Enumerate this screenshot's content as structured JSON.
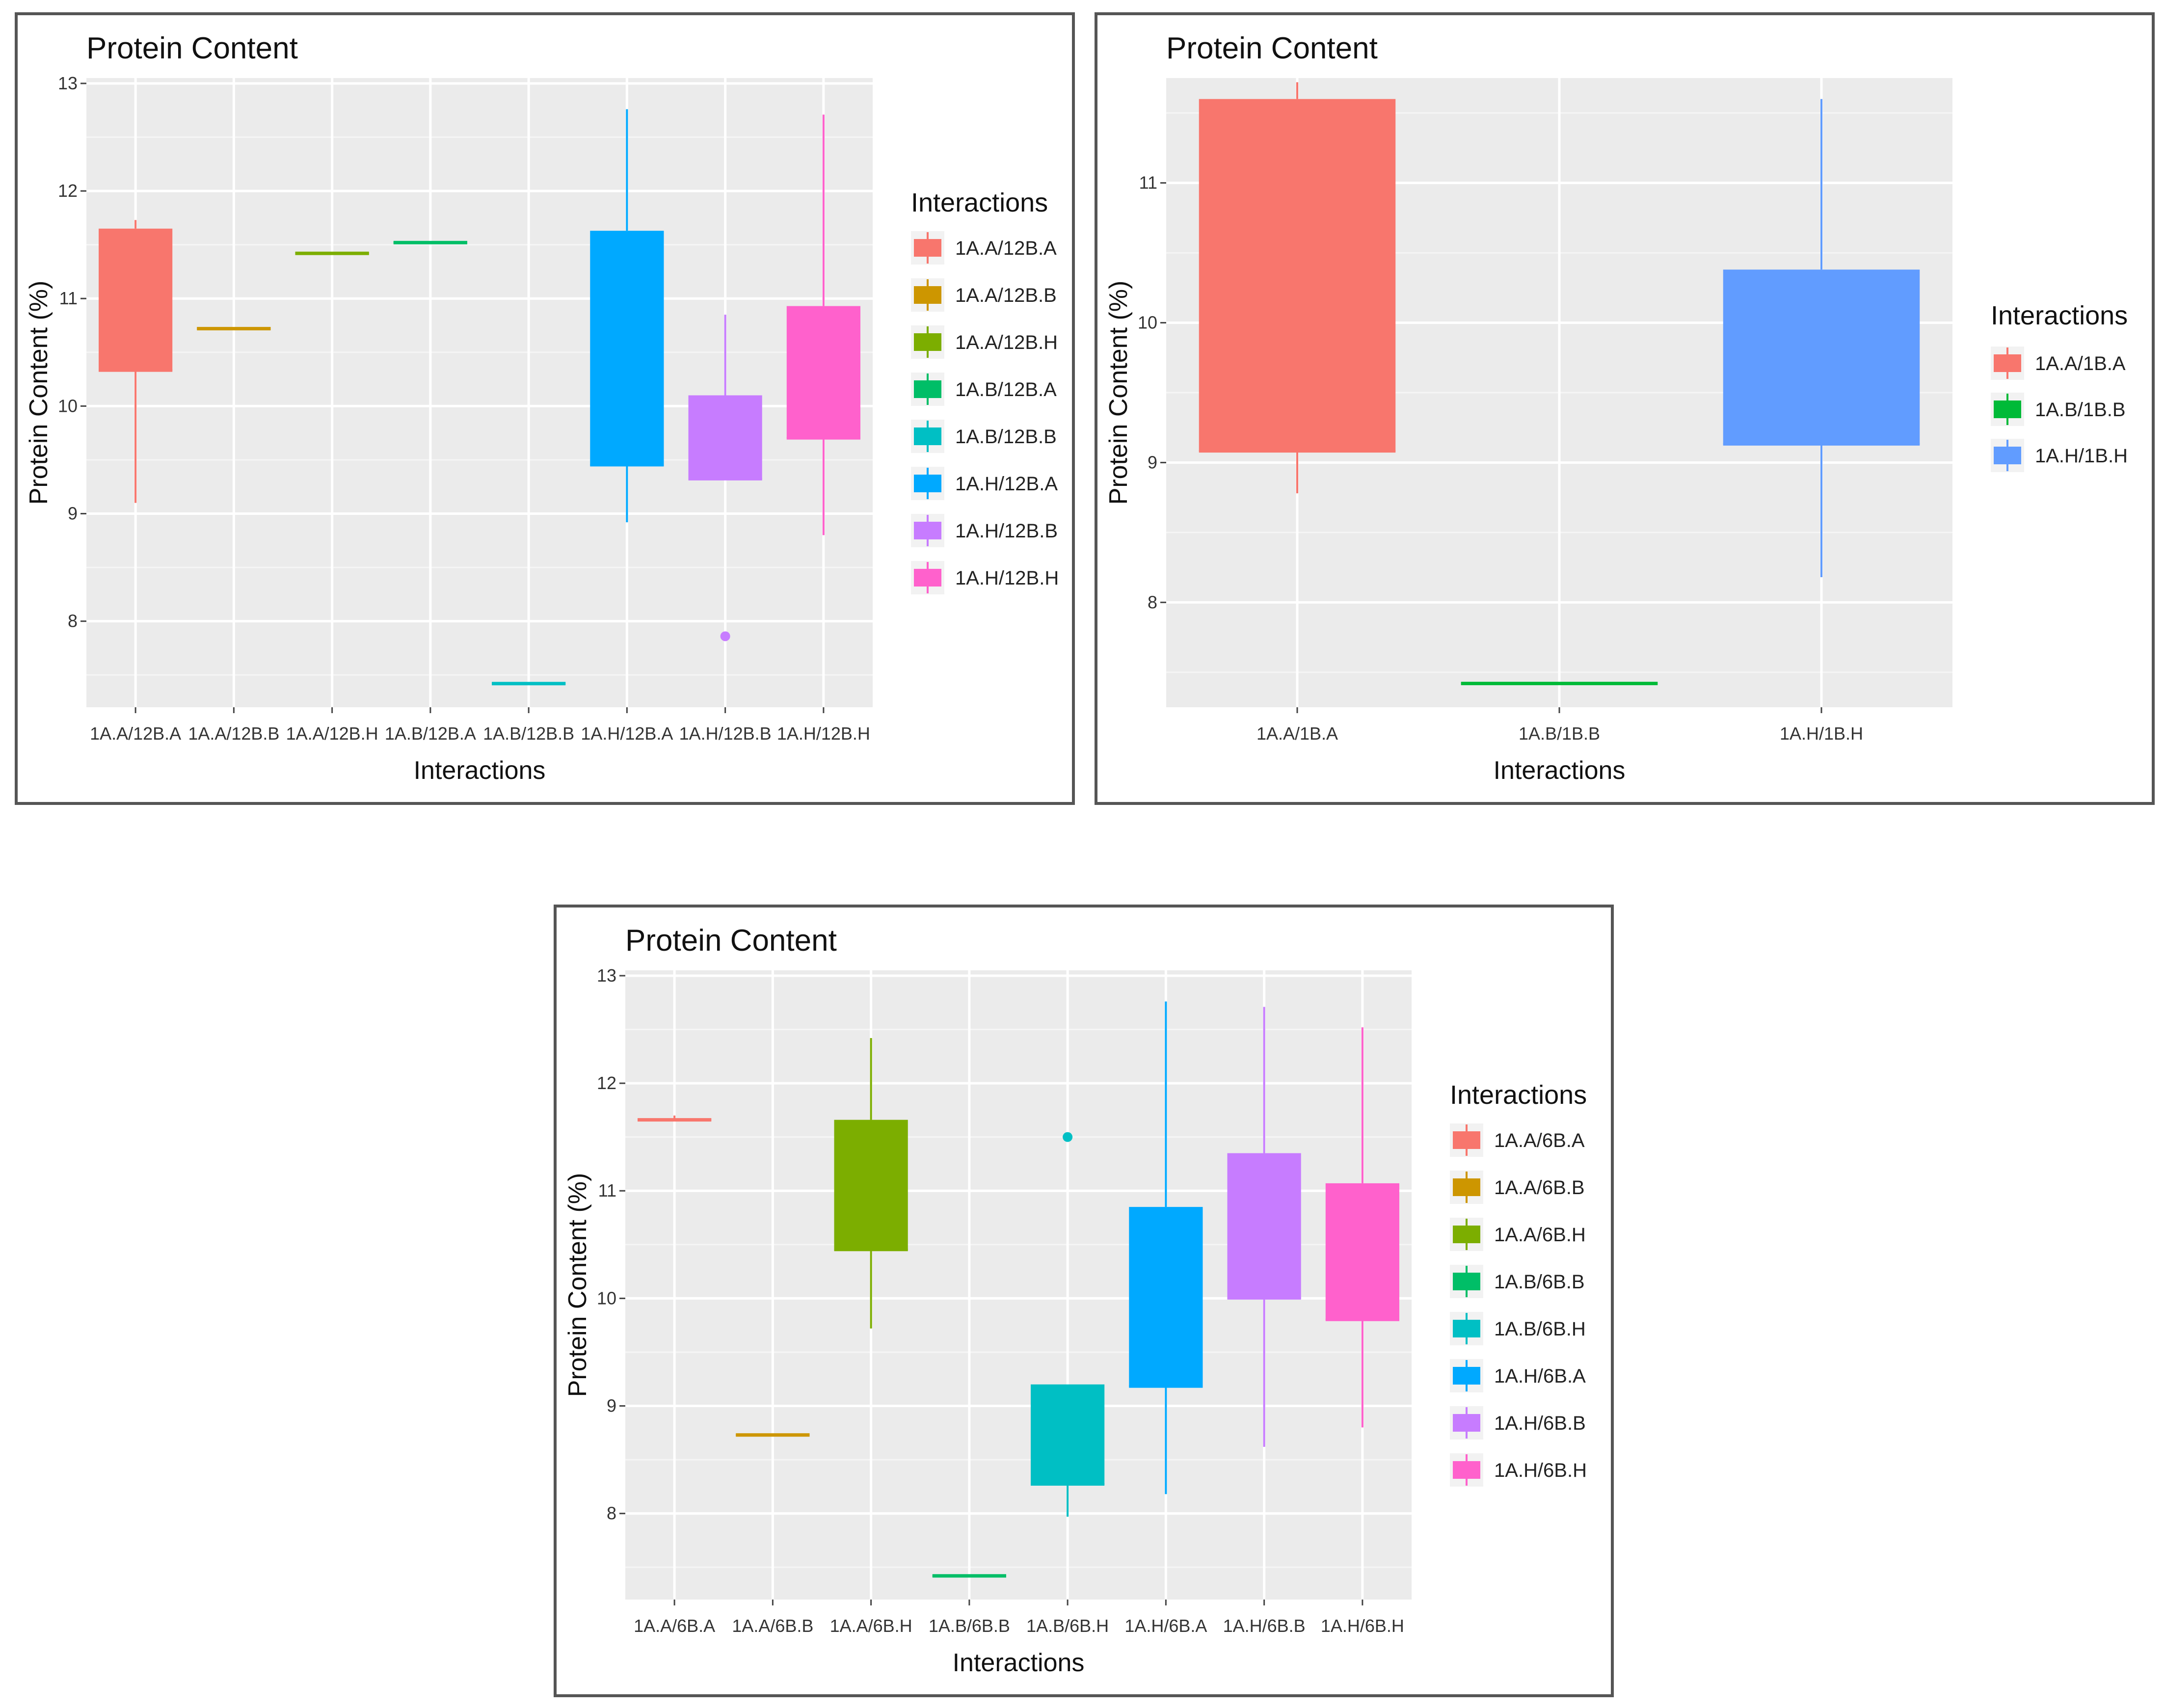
{
  "chart_data": [
    {
      "type": "box",
      "title": "Protein Content",
      "xlabel": "Interactions",
      "ylabel": "Protein Content (%)",
      "ylim": [
        7.2,
        13.05
      ],
      "yticks": [
        8,
        9,
        10,
        11,
        12,
        13
      ],
      "legend_title": "Interactions",
      "legend_position": "right",
      "series": [
        {
          "name": "1A.A/12B.A",
          "color": "#F8766D",
          "min": 9.1,
          "q1": 10.33,
          "median": 10.33,
          "q3": 11.65,
          "max": 11.73
        },
        {
          "name": "1A.A/12B.B",
          "color": "#CD9600",
          "min": 10.72,
          "q1": 10.72,
          "median": 10.72,
          "q3": 10.72,
          "max": 10.72
        },
        {
          "name": "1A.A/12B.H",
          "color": "#7CAE00",
          "min": 11.42,
          "q1": 11.42,
          "median": 11.42,
          "q3": 11.42,
          "max": 11.42
        },
        {
          "name": "1A.B/12B.A",
          "color": "#00BE67",
          "min": 11.52,
          "q1": 11.52,
          "median": 11.52,
          "q3": 11.52,
          "max": 11.52
        },
        {
          "name": "1A.B/12B.B",
          "color": "#00BFC4",
          "min": 7.42,
          "q1": 7.42,
          "median": 7.42,
          "q3": 7.42,
          "max": 7.42
        },
        {
          "name": "1A.H/12B.A",
          "color": "#00A9FF",
          "min": 8.92,
          "q1": 9.45,
          "median": 9.45,
          "q3": 11.63,
          "max": 12.76
        },
        {
          "name": "1A.H/12B.B",
          "color": "#C77CFF",
          "min": 9.32,
          "q1": 9.32,
          "median": 9.32,
          "q3": 10.1,
          "max": 10.85,
          "outliers": [
            7.86
          ]
        },
        {
          "name": "1A.H/12B.H",
          "color": "#FF61CC",
          "min": 8.8,
          "q1": 9.7,
          "median": 9.7,
          "q3": 10.93,
          "max": 12.71
        }
      ]
    },
    {
      "type": "box",
      "title": "Protein Content",
      "xlabel": "Interactions",
      "ylabel": "Protein Content (%)",
      "ylim": [
        7.25,
        11.75
      ],
      "yticks": [
        8,
        9,
        10,
        11
      ],
      "legend_title": "Interactions",
      "legend_position": "right",
      "series": [
        {
          "name": "1A.A/1B.A",
          "color": "#F8766D",
          "min": 8.78,
          "q1": 9.08,
          "median": 9.08,
          "q3": 11.6,
          "max": 11.72
        },
        {
          "name": "1A.B/1B.B",
          "color": "#00BA38",
          "min": 7.42,
          "q1": 7.42,
          "median": 7.42,
          "q3": 7.42,
          "max": 7.42
        },
        {
          "name": "1A.H/1B.H",
          "color": "#619CFF",
          "min": 8.18,
          "q1": 9.13,
          "median": 9.13,
          "q3": 10.38,
          "max": 11.6
        }
      ]
    },
    {
      "type": "box",
      "title": "Protein Content",
      "xlabel": "Interactions",
      "ylabel": "Protein Content (%)",
      "ylim": [
        7.2,
        13.05
      ],
      "yticks": [
        8,
        9,
        10,
        11,
        12,
        13
      ],
      "legend_title": "Interactions",
      "legend_position": "right",
      "series": [
        {
          "name": "1A.A/6B.A",
          "color": "#F8766D",
          "min": 11.66,
          "q1": 11.66,
          "median": 11.66,
          "q3": 11.66,
          "max": 11.7
        },
        {
          "name": "1A.A/6B.B",
          "color": "#CD9600",
          "min": 8.73,
          "q1": 8.73,
          "median": 8.73,
          "q3": 8.73,
          "max": 8.73
        },
        {
          "name": "1A.A/6B.H",
          "color": "#7CAE00",
          "min": 9.72,
          "q1": 10.45,
          "median": 10.45,
          "q3": 11.66,
          "max": 12.42
        },
        {
          "name": "1A.B/6B.B",
          "color": "#00BE67",
          "min": 7.42,
          "q1": 7.42,
          "median": 7.42,
          "q3": 7.42,
          "max": 7.42
        },
        {
          "name": "1A.B/6B.H",
          "color": "#00BFC4",
          "min": 7.97,
          "q1": 8.27,
          "median": 8.27,
          "q3": 9.2,
          "max": 9.2,
          "outliers": [
            11.5
          ]
        },
        {
          "name": "1A.H/6B.A",
          "color": "#00A9FF",
          "min": 8.18,
          "q1": 9.18,
          "median": 9.18,
          "q3": 10.85,
          "max": 12.76
        },
        {
          "name": "1A.H/6B.B",
          "color": "#C77CFF",
          "min": 8.62,
          "q1": 10.0,
          "median": 10.0,
          "q3": 11.35,
          "max": 12.71
        },
        {
          "name": "1A.H/6B.H",
          "color": "#FF61CC",
          "min": 8.8,
          "q1": 9.8,
          "median": 9.8,
          "q3": 11.07,
          "max": 12.52
        }
      ]
    }
  ]
}
